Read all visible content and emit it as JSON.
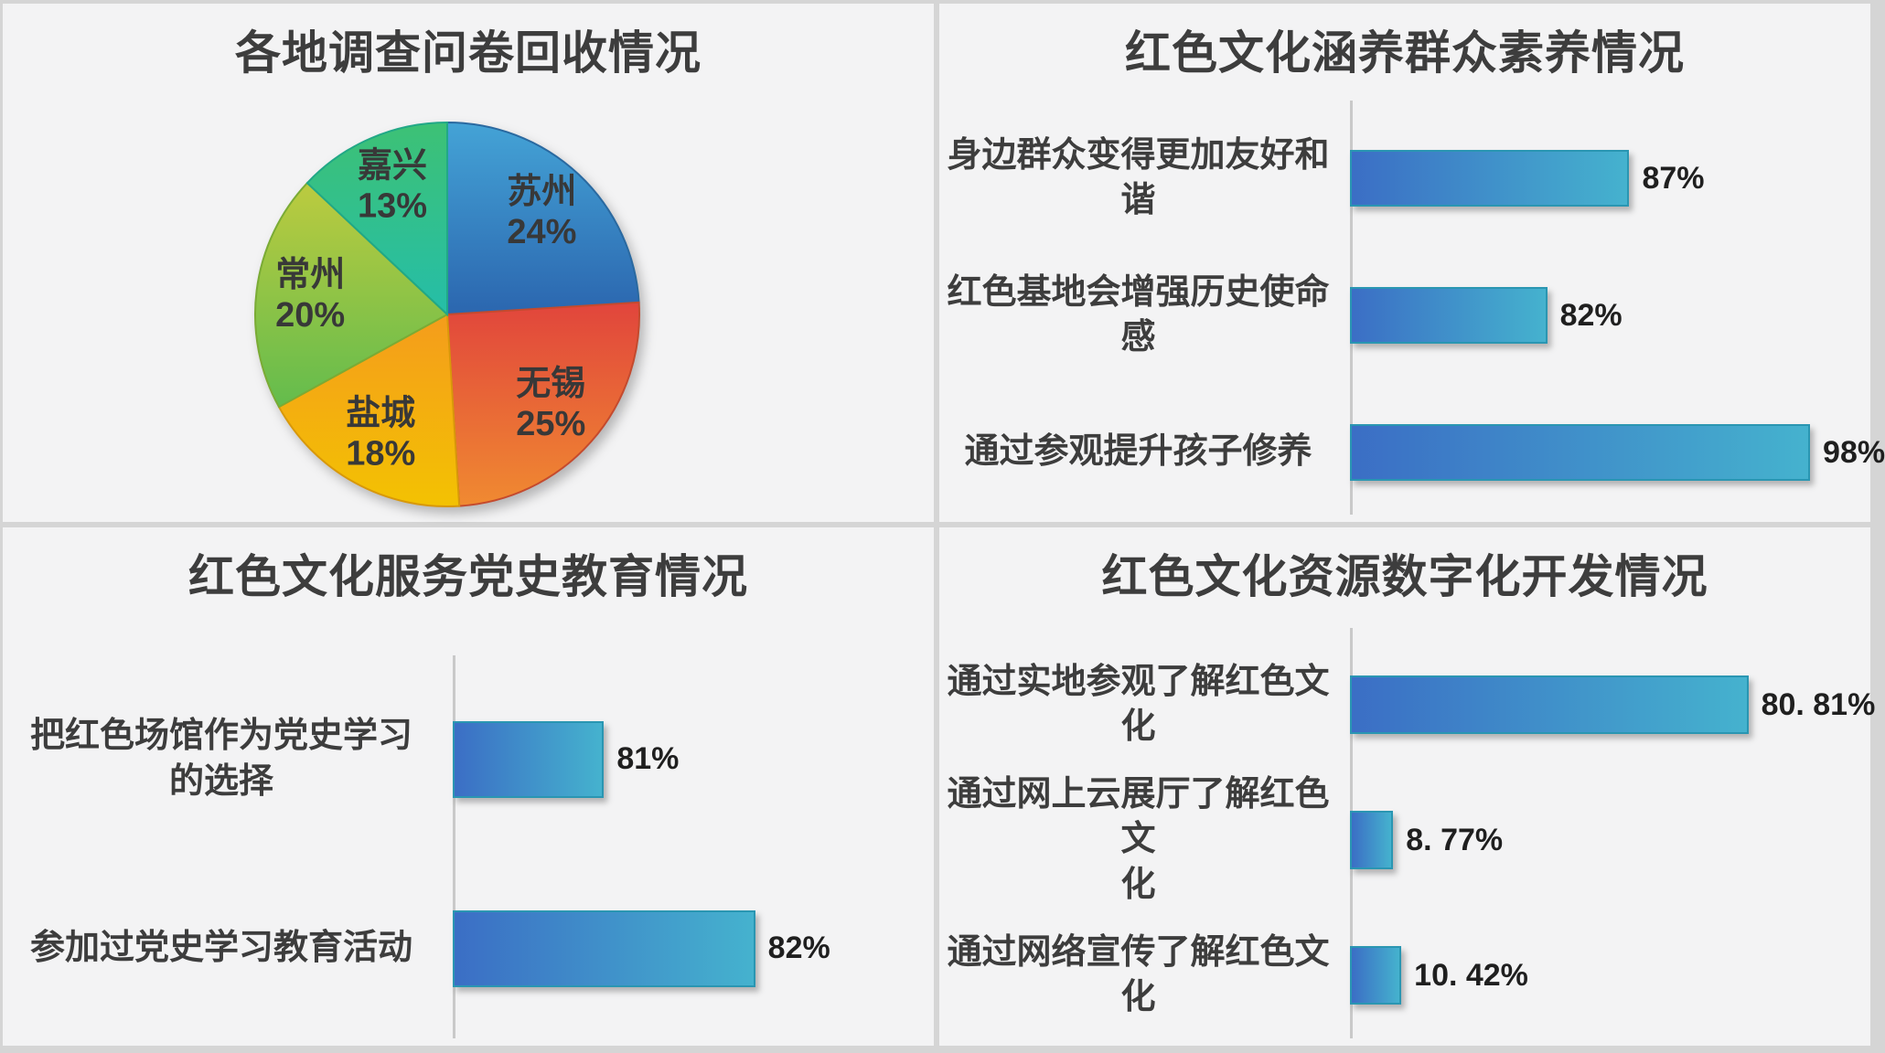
{
  "page": {
    "background": "#f3f3f4",
    "divider_color": "#d5d5d5",
    "title_color": "#3d3d3d",
    "category_color": "#3d3d3d",
    "value_color": "#1f1f1f",
    "axis_color": "#c9c9c9"
  },
  "panels": [
    {
      "title": "各地调查问卷回收情况"
    },
    {
      "title": "红色文化涵养群众素养情况"
    },
    {
      "title": "红色文化服务党史教育情况"
    },
    {
      "title": "红色文化资源数字化开发情况"
    }
  ],
  "bar_style": {
    "gradient_left": "#3b6ec5",
    "gradient_right": "#45b2ce",
    "border": "#2a96b2"
  },
  "chart_data": [
    {
      "type": "pie",
      "title": "各地调查问卷回收情况",
      "start_angle_deg": -90,
      "direction": "clockwise",
      "legend": "none",
      "labels_inside": true,
      "label_color": "#383838",
      "slices": [
        {
          "name": "苏州",
          "value": 24,
          "display": "24%",
          "color_top": "#44a3d6",
          "color_bottom": "#2b66af",
          "edge": "#2a69a0"
        },
        {
          "name": "无锡",
          "value": 25,
          "display": "25%",
          "color_top": "#e1453c",
          "color_bottom": "#f08a31",
          "edge": "#c44a2e"
        },
        {
          "name": "盐城",
          "value": 18,
          "display": "18%",
          "color_top": "#f49c1c",
          "color_bottom": "#f3c202",
          "edge": "#d8980a"
        },
        {
          "name": "常州",
          "value": 20,
          "display": "20%",
          "color_top": "#bccb3f",
          "color_bottom": "#63bc4d",
          "edge": "#7aab35"
        },
        {
          "name": "嘉兴",
          "value": 13,
          "display": "13%",
          "color_top": "#3dc175",
          "color_bottom": "#25bea8",
          "edge": "#21a886"
        }
      ]
    },
    {
      "type": "bar",
      "orientation": "horizontal",
      "title": "红色文化涵养群众素养情况",
      "xlim": [
        70,
        100
      ],
      "grid": false,
      "value_label_position": "right-of-bar",
      "bars": [
        {
          "category": "身边群众变得更加友好和谐",
          "value": 87,
          "label": "87%"
        },
        {
          "category": "红色基地会增强历史使命感",
          "value": 82,
          "label": "82%"
        },
        {
          "category": "通过参观提升孩子修养",
          "value": 98,
          "label": "98%"
        }
      ]
    },
    {
      "type": "bar",
      "orientation": "horizontal",
      "title": "红色文化服务党史教育情况",
      "xlim": [
        80,
        83
      ],
      "grid": false,
      "value_label_position": "right-of-bar",
      "bars": [
        {
          "category": "把红色场馆作为党史学习的选择",
          "category_lines": [
            "把红色场馆作为党史学习",
            "的选择"
          ],
          "value": 81,
          "label": "81%"
        },
        {
          "category": "参加过党史学习教育活动",
          "value": 82,
          "label": "82%"
        }
      ]
    },
    {
      "type": "bar",
      "orientation": "horizontal",
      "title": "红色文化资源数字化开发情况",
      "xlim": [
        0,
        100
      ],
      "grid": false,
      "value_label_position": "right-of-bar",
      "bars": [
        {
          "category": "通过实地参观了解红色文化",
          "value": 80.81,
          "label": "80. 81%"
        },
        {
          "category": "通过网上云展厅了解红色文化",
          "category_lines": [
            "通过网上云展厅了解红色文",
            "化"
          ],
          "value": 8.77,
          "label": "8. 77%"
        },
        {
          "category": "通过网络宣传了解红色文化",
          "value": 10.42,
          "label": "10. 42%"
        }
      ]
    }
  ]
}
